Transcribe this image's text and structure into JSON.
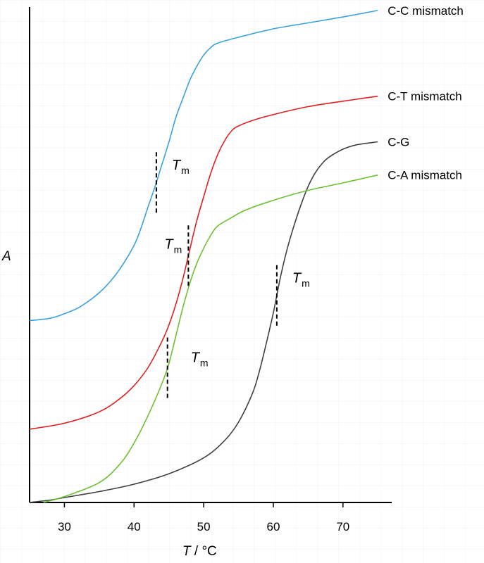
{
  "chart_data": {
    "type": "line",
    "title": "",
    "xlabel_var": "T",
    "xlabel_unit": " / °C",
    "ylabel": "A",
    "xlim": [
      25,
      77
    ],
    "ylim": [
      0,
      1.0
    ],
    "x_ticks": [
      30,
      40,
      50,
      60,
      70
    ],
    "grid": false,
    "series": [
      {
        "name": "C-C mismatch",
        "color": "#3aa0e0",
        "x": [
          25,
          28,
          30,
          32,
          34,
          36,
          38,
          40,
          41,
          42,
          43,
          44,
          45,
          46,
          47,
          48,
          49,
          50,
          51,
          52,
          55,
          60,
          65,
          70,
          75
        ],
        "y": [
          0.367,
          0.372,
          0.381,
          0.393,
          0.412,
          0.437,
          0.472,
          0.519,
          0.554,
          0.596,
          0.637,
          0.682,
          0.727,
          0.777,
          0.815,
          0.852,
          0.88,
          0.903,
          0.918,
          0.927,
          0.939,
          0.956,
          0.968,
          0.98,
          0.993
        ]
      },
      {
        "name": "C-T mismatch",
        "color": "#e02020",
        "x": [
          25,
          30,
          35,
          38,
          40,
          42,
          44,
          45,
          46,
          47,
          48,
          49,
          50,
          51,
          52,
          53,
          54,
          55,
          57,
          60,
          65,
          70,
          75
        ],
        "y": [
          0.148,
          0.16,
          0.183,
          0.21,
          0.236,
          0.272,
          0.325,
          0.358,
          0.4,
          0.451,
          0.51,
          0.568,
          0.617,
          0.664,
          0.702,
          0.73,
          0.75,
          0.76,
          0.771,
          0.783,
          0.799,
          0.81,
          0.82
        ]
      },
      {
        "name": "C-G",
        "color": "#404040",
        "x": [
          25,
          28,
          30,
          35,
          40,
          45,
          50,
          53,
          55,
          57,
          58,
          59,
          60,
          61,
          62,
          63,
          64,
          65,
          66,
          67,
          68,
          70,
          72,
          75
        ],
        "y": [
          0.0,
          0.005,
          0.01,
          0.022,
          0.037,
          0.058,
          0.09,
          0.125,
          0.162,
          0.22,
          0.265,
          0.322,
          0.383,
          0.453,
          0.512,
          0.56,
          0.602,
          0.638,
          0.665,
          0.684,
          0.697,
          0.713,
          0.722,
          0.728
        ]
      },
      {
        "name": "C-A mismatch",
        "color": "#6cc032",
        "x": [
          27,
          30,
          35,
          38,
          40,
          42,
          44,
          45,
          46,
          47,
          48,
          49,
          50,
          51,
          52,
          54,
          56,
          60,
          65,
          70,
          75
        ],
        "y": [
          0.0,
          0.012,
          0.04,
          0.078,
          0.12,
          0.175,
          0.24,
          0.28,
          0.336,
          0.393,
          0.442,
          0.482,
          0.513,
          0.539,
          0.558,
          0.575,
          0.59,
          0.61,
          0.63,
          0.645,
          0.661
        ]
      }
    ],
    "markers": [
      {
        "series": "C-C mismatch",
        "x": 43.2,
        "label_var": "T",
        "label_sub": "m",
        "label_side": "right"
      },
      {
        "series": "C-T mismatch",
        "x": 47.8,
        "label_var": "T",
        "label_sub": "m",
        "label_side": "left"
      },
      {
        "series": "C-A mismatch",
        "x": 44.8,
        "label_var": "T",
        "label_sub": "m",
        "label_side": "right-below"
      },
      {
        "series": "C-G",
        "x": 60.5,
        "label_var": "T",
        "label_sub": "m",
        "label_side": "right"
      }
    ]
  }
}
